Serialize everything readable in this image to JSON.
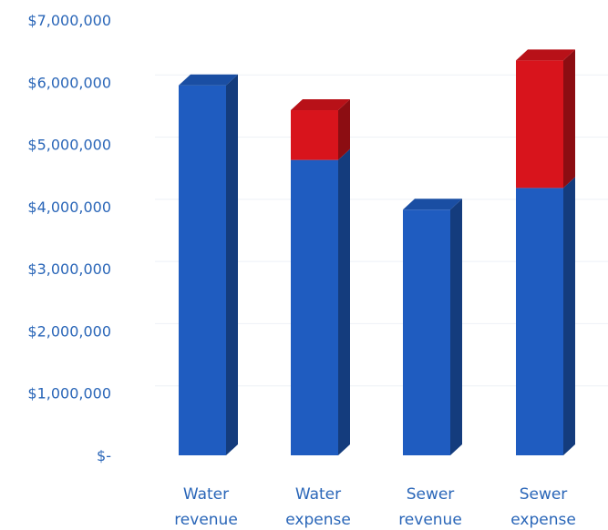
{
  "chart_data": {
    "type": "bar",
    "stacked": true,
    "three_d": true,
    "categories": [
      "Water revenue",
      "Water expense",
      "Sewer revenue",
      "Sewer expense"
    ],
    "category_lines": [
      [
        "Water",
        "revenue"
      ],
      [
        "Water",
        "expense"
      ],
      [
        "Sewer",
        "revenue"
      ],
      [
        "Sewer",
        "expense"
      ]
    ],
    "series": [
      {
        "color": "#1f5cc0",
        "values": [
          5950000,
          4750000,
          3950000,
          4300000
        ]
      },
      {
        "color": "#d8141c",
        "values": [
          0,
          800000,
          0,
          2050000
        ]
      }
    ],
    "y_ticks": [
      0,
      1000000,
      2000000,
      3000000,
      4000000,
      5000000,
      6000000,
      7000000
    ],
    "y_tick_labels": [
      "$-",
      "$1,000,000",
      "$2,000,000",
      "$3,000,000",
      "$4,000,000",
      "$5,000,000",
      "$6,000,000",
      "$7,000,000"
    ],
    "ylim": [
      0,
      7000000
    ],
    "grid": true,
    "legend": false
  }
}
